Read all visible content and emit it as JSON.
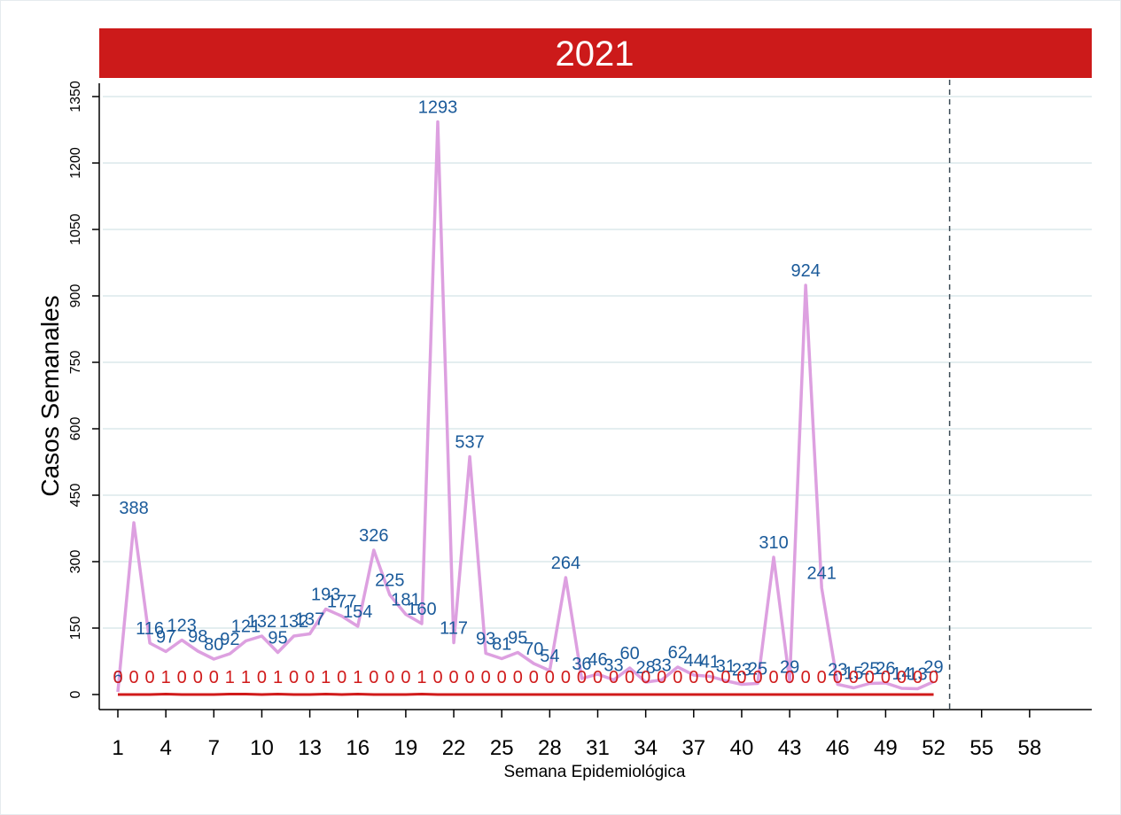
{
  "chart_data": {
    "type": "line",
    "title": "2021",
    "xlabel": "Semana Epidemiológica",
    "ylabel": "Casos Semanales",
    "xlim": [
      0,
      58
    ],
    "ylim": [
      0,
      1350
    ],
    "x_ticks": [
      1,
      4,
      7,
      10,
      13,
      16,
      19,
      22,
      25,
      28,
      31,
      34,
      37,
      40,
      43,
      46,
      49,
      52,
      55,
      58
    ],
    "y_ticks": [
      0,
      150,
      300,
      450,
      600,
      750,
      900,
      1050,
      1200,
      1350
    ],
    "reference_line_x": 53,
    "grid": true,
    "series": [
      {
        "color": "#dda0e0",
        "label_color": "#1a5a9a",
        "x": [
          1,
          2,
          3,
          4,
          5,
          6,
          7,
          8,
          9,
          10,
          11,
          12,
          13,
          14,
          15,
          16,
          17,
          18,
          19,
          20,
          21,
          22,
          23,
          24,
          25,
          26,
          27,
          28,
          29,
          30,
          31,
          32,
          33,
          34,
          35,
          36,
          37,
          38,
          39,
          40,
          41,
          42,
          43,
          44,
          45,
          46,
          47,
          48,
          49,
          50,
          51,
          52
        ],
        "values": [
          6,
          388,
          116,
          97,
          123,
          98,
          80,
          92,
          121,
          132,
          95,
          132,
          137,
          193,
          177,
          154,
          326,
          225,
          181,
          160,
          1293,
          117,
          537,
          93,
          81,
          95,
          70,
          54,
          264,
          36,
          46,
          33,
          60,
          28,
          33,
          62,
          44,
          41,
          31,
          23,
          25,
          310,
          29,
          924,
          241,
          23,
          15,
          25,
          26,
          14,
          13,
          29
        ]
      },
      {
        "color": "#d01a1a",
        "label_color": "#d01a1a",
        "x": [
          1,
          2,
          3,
          4,
          5,
          6,
          7,
          8,
          9,
          10,
          11,
          12,
          13,
          14,
          15,
          16,
          17,
          18,
          19,
          20,
          21,
          22,
          23,
          24,
          25,
          26,
          27,
          28,
          29,
          30,
          31,
          32,
          33,
          34,
          35,
          36,
          37,
          38,
          39,
          40,
          41,
          42,
          43,
          44,
          45,
          46,
          47,
          48,
          49,
          50,
          51,
          52
        ],
        "values": [
          0,
          0,
          0,
          1,
          0,
          0,
          0,
          1,
          1,
          0,
          1,
          0,
          0,
          1,
          0,
          1,
          0,
          0,
          0,
          1,
          0,
          0,
          0,
          0,
          0,
          0,
          0,
          0,
          0,
          0,
          0,
          0,
          0,
          0,
          0,
          0,
          0,
          0,
          0,
          0,
          0,
          0,
          0,
          0,
          0,
          0,
          0,
          0,
          0,
          0,
          0,
          0
        ]
      }
    ],
    "colors": {
      "title_bar": "#cc1a1a",
      "grid": "#e4eef0",
      "reference_line": "#3b4a55"
    }
  }
}
